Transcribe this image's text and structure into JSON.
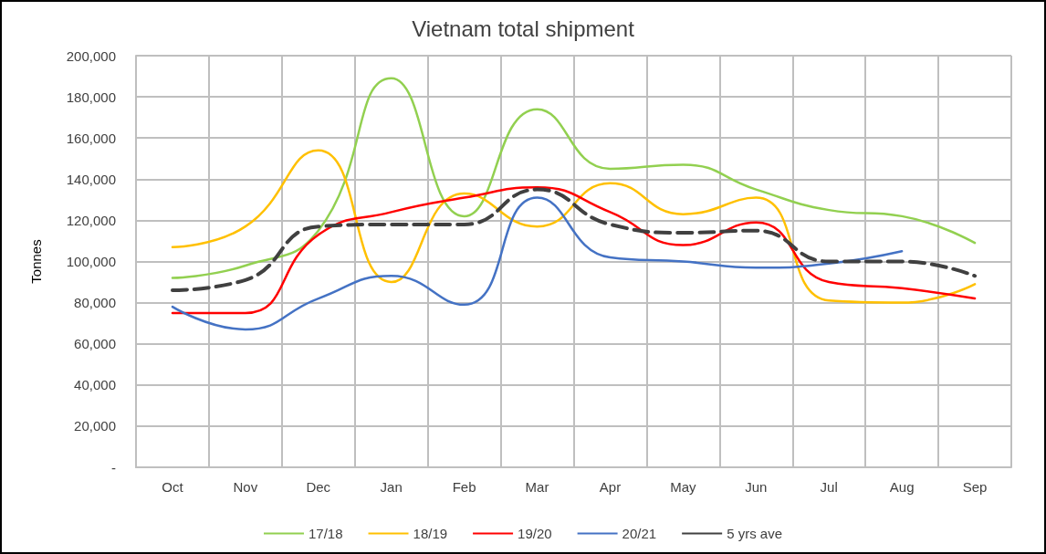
{
  "chart_data": {
    "type": "line",
    "title": "Vietnam total shipment",
    "ylabel": "Tonnes",
    "categories": [
      "Oct",
      "Nov",
      "Dec",
      "Jan",
      "Feb",
      "Mar",
      "Apr",
      "May",
      "Jun",
      "Jul",
      "Aug",
      "Sep"
    ],
    "series": [
      {
        "name": "17/18",
        "color": "#92d050",
        "values": [
          92000,
          98000,
          115000,
          189000,
          122000,
          174000,
          145000,
          147000,
          135000,
          125000,
          122000,
          109000
        ]
      },
      {
        "name": "18/19",
        "color": "#ffc000",
        "values": [
          107000,
          117000,
          154000,
          90000,
          133000,
          117000,
          138000,
          123000,
          131000,
          81000,
          80000,
          89000
        ]
      },
      {
        "name": "19/20",
        "color": "#ff0000",
        "values": [
          75000,
          75000,
          113000,
          124000,
          131000,
          136000,
          124000,
          108000,
          119000,
          90000,
          87000,
          82000
        ]
      },
      {
        "name": "20/21",
        "color": "#4472c4",
        "values": [
          78000,
          67000,
          82000,
          93000,
          79000,
          131000,
          102000,
          100000,
          97000,
          99000,
          105000,
          null
        ]
      },
      {
        "name": "5 yrs ave",
        "color": "#404040",
        "line_style": "dashed",
        "values": [
          86000,
          91000,
          117000,
          118000,
          118000,
          135000,
          118000,
          114000,
          115000,
          100000,
          100000,
          93000
        ]
      }
    ],
    "ylim": [
      0,
      200000
    ],
    "yticks": [
      {
        "value": 0,
        "label": "-"
      },
      {
        "value": 20000,
        "label": "20,000"
      },
      {
        "value": 40000,
        "label": "40,000"
      },
      {
        "value": 60000,
        "label": "60,000"
      },
      {
        "value": 80000,
        "label": "80,000"
      },
      {
        "value": 100000,
        "label": "100,000"
      },
      {
        "value": 120000,
        "label": "120,000"
      },
      {
        "value": 140000,
        "label": "140,000"
      },
      {
        "value": 160000,
        "label": "160,000"
      },
      {
        "value": 180000,
        "label": "180,000"
      },
      {
        "value": 200000,
        "label": "200,000"
      }
    ],
    "grid": true,
    "legend": "bottom",
    "marker": "none",
    "line_style": "solid"
  }
}
